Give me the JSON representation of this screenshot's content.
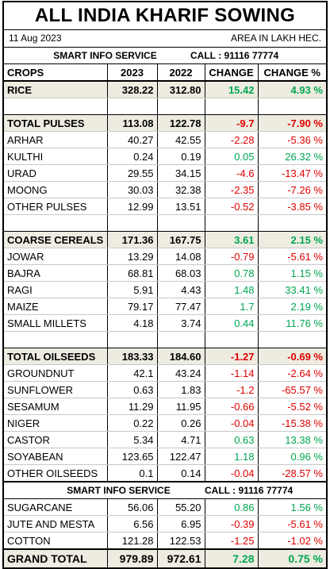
{
  "title": "ALL INDIA KHARIF SOWING",
  "date": "11 Aug 2023",
  "unit": "AREA IN LAKH HEC.",
  "service": "SMART INFO SERVICE",
  "call": "CALL : 91116 77774",
  "headers": [
    "CROPS",
    "2023",
    "2022",
    "CHANGE",
    "CHANGE %"
  ],
  "colors": {
    "positive": "#00a651",
    "negative": "#e00000",
    "highlight": "#eeece1"
  },
  "rice": {
    "crop": "RICE",
    "y2023": "328.22",
    "y2022": "312.80",
    "change": "15.42",
    "pct": "4.93 %"
  },
  "pulses": {
    "total": {
      "crop": "TOTAL PULSES",
      "y2023": "113.08",
      "y2022": "122.78",
      "change": "-9.7",
      "pct": "-7.90 %"
    },
    "rows": [
      {
        "crop": "ARHAR",
        "y2023": "40.27",
        "y2022": "42.55",
        "change": "-2.28",
        "pct": "-5.36 %"
      },
      {
        "crop": "KULTHI",
        "y2023": "0.24",
        "y2022": "0.19",
        "change": "0.05",
        "pct": "26.32 %"
      },
      {
        "crop": "URAD",
        "y2023": "29.55",
        "y2022": "34.15",
        "change": "-4.6",
        "pct": "-13.47 %"
      },
      {
        "crop": "MOONG",
        "y2023": "30.03",
        "y2022": "32.38",
        "change": "-2.35",
        "pct": "-7.26 %"
      },
      {
        "crop": "OTHER PULSES",
        "y2023": "12.99",
        "y2022": "13.51",
        "change": "-0.52",
        "pct": "-3.85 %"
      }
    ]
  },
  "cereals": {
    "total": {
      "crop": "COARSE CEREALS",
      "y2023": "171.36",
      "y2022": "167.75",
      "change": "3.61",
      "pct": "2.15 %"
    },
    "rows": [
      {
        "crop": "JOWAR",
        "y2023": "13.29",
        "y2022": "14.08",
        "change": "-0.79",
        "pct": "-5.61 %"
      },
      {
        "crop": "BAJRA",
        "y2023": "68.81",
        "y2022": "68.03",
        "change": "0.78",
        "pct": "1.15 %"
      },
      {
        "crop": "RAGI",
        "y2023": "5.91",
        "y2022": "4.43",
        "change": "1.48",
        "pct": "33.41 %"
      },
      {
        "crop": "MAIZE",
        "y2023": "79.17",
        "y2022": "77.47",
        "change": "1.7",
        "pct": "2.19 %"
      },
      {
        "crop": "SMALL MILLETS",
        "y2023": "4.18",
        "y2022": "3.74",
        "change": "0.44",
        "pct": "11.76 %"
      }
    ]
  },
  "oilseeds": {
    "total": {
      "crop": "TOTAL OILSEEDS",
      "y2023": "183.33",
      "y2022": "184.60",
      "change": "-1.27",
      "pct": "-0.69 %"
    },
    "rows": [
      {
        "crop": "GROUNDNUT",
        "y2023": "42.1",
        "y2022": "43.24",
        "change": "-1.14",
        "pct": "-2.64 %"
      },
      {
        "crop": "SUNFLOWER",
        "y2023": "0.63",
        "y2022": "1.83",
        "change": "-1.2",
        "pct": "-65.57 %"
      },
      {
        "crop": "SESAMUM",
        "y2023": "11.29",
        "y2022": "11.95",
        "change": "-0.66",
        "pct": "-5.52 %"
      },
      {
        "crop": "NIGER",
        "y2023": "0.22",
        "y2022": "0.26",
        "change": "-0.04",
        "pct": "-15.38 %"
      },
      {
        "crop": "CASTOR",
        "y2023": "5.34",
        "y2022": "4.71",
        "change": "0.63",
        "pct": "13.38 %"
      },
      {
        "crop": "SOYABEAN",
        "y2023": "123.65",
        "y2022": "122.47",
        "change": "1.18",
        "pct": "0.96 %"
      },
      {
        "crop": "OTHER OILSEEDS",
        "y2023": "0.1",
        "y2022": "0.14",
        "change": "-0.04",
        "pct": "-28.57 %"
      }
    ]
  },
  "others": [
    {
      "crop": "SUGARCANE",
      "y2023": "56.06",
      "y2022": "55.20",
      "change": "0.86",
      "pct": "1.56 %"
    },
    {
      "crop": "JUTE AND MESTA",
      "y2023": "6.56",
      "y2022": "6.95",
      "change": "-0.39",
      "pct": "-5.61 %"
    },
    {
      "crop": "COTTON",
      "y2023": "121.28",
      "y2022": "122.53",
      "change": "-1.25",
      "pct": "-1.02 %"
    }
  ],
  "grand": {
    "crop": "GRAND TOTAL",
    "y2023": "979.89",
    "y2022": "972.61",
    "change": "7.28",
    "pct": "0.75 %"
  }
}
